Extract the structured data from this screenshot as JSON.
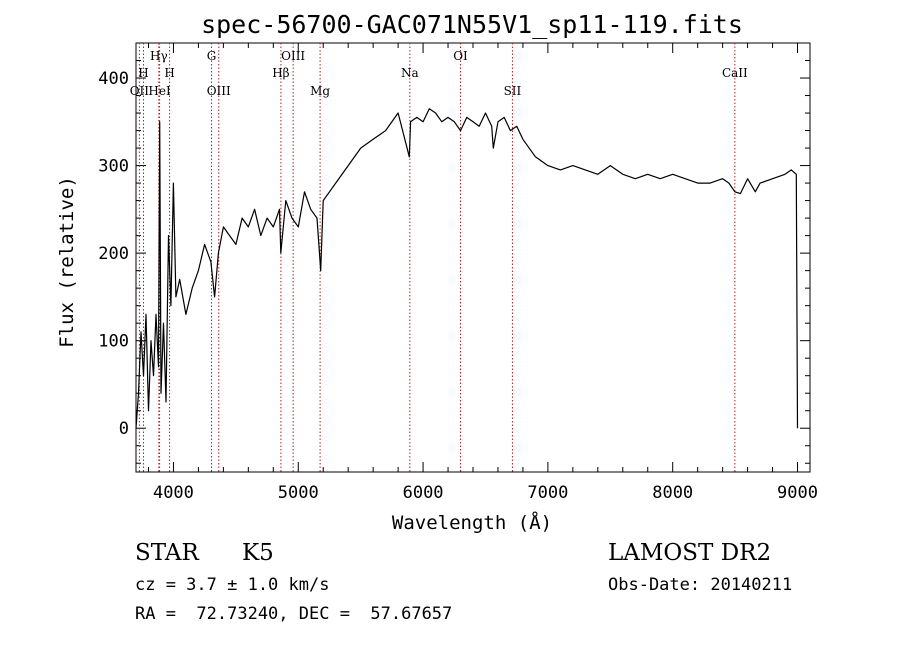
{
  "colors": {
    "background": "#ffffff",
    "foreground": "#000000",
    "line_marker": "#b22222"
  },
  "info": {
    "class": "STAR",
    "subclass": "K5",
    "survey": "LAMOST DR2",
    "redshift": "cz = 3.7 ± 1.0 km/s",
    "obs_date": "Obs-Date: 20140211",
    "coords": "RA =  72.73240, DEC =  57.67657"
  },
  "chart_data": {
    "type": "line",
    "title": "spec-56700-GAC071N55V1_sp11-119.fits",
    "xlabel": "Wavelength (Å)",
    "ylabel": "Flux (relative)",
    "xlim": [
      3700,
      9100
    ],
    "ylim": [
      -50,
      440
    ],
    "x_ticks": [
      4000,
      5000,
      6000,
      7000,
      8000,
      9000
    ],
    "y_ticks": [
      0,
      100,
      200,
      300,
      400
    ],
    "x_tick_labels": [
      "4000",
      "5000",
      "6000",
      "7000",
      "8000",
      "9000"
    ],
    "y_tick_labels": [
      "0",
      "100",
      "200",
      "300",
      "400"
    ],
    "grid": false,
    "series": [
      {
        "x": [
          3700,
          3720,
          3740,
          3760,
          3780,
          3800,
          3820,
          3840,
          3860,
          3880,
          3890,
          3900,
          3920,
          3940,
          3960,
          3980,
          4000,
          4020,
          4050,
          4100,
          4150,
          4200,
          4250,
          4300,
          4330,
          4360,
          4400,
          4450,
          4500,
          4550,
          4600,
          4650,
          4700,
          4750,
          4800,
          4850,
          4860,
          4900,
          4950,
          5000,
          5050,
          5100,
          5150,
          5180,
          5200,
          5250,
          5300,
          5400,
          5500,
          5600,
          5700,
          5800,
          5890,
          5900,
          5950,
          6000,
          6050,
          6100,
          6150,
          6200,
          6250,
          6300,
          6350,
          6400,
          6450,
          6500,
          6550,
          6563,
          6600,
          6650,
          6700,
          6750,
          6800,
          6900,
          7000,
          7100,
          7200,
          7300,
          7400,
          7500,
          7600,
          7700,
          7800,
          7900,
          8000,
          8100,
          8200,
          8300,
          8400,
          8450,
          8498,
          8542,
          8600,
          8662,
          8700,
          8800,
          8900,
          8950,
          8990,
          9000
        ],
        "y": [
          0,
          40,
          110,
          60,
          130,
          20,
          100,
          60,
          130,
          70,
          350,
          40,
          120,
          30,
          220,
          140,
          280,
          150,
          170,
          130,
          160,
          180,
          210,
          190,
          150,
          200,
          230,
          220,
          210,
          240,
          230,
          250,
          220,
          240,
          230,
          250,
          200,
          260,
          240,
          230,
          270,
          250,
          240,
          180,
          260,
          270,
          280,
          300,
          320,
          330,
          340,
          360,
          310,
          350,
          355,
          350,
          365,
          360,
          350,
          355,
          350,
          340,
          355,
          350,
          345,
          360,
          345,
          320,
          350,
          355,
          340,
          345,
          330,
          310,
          300,
          295,
          300,
          295,
          290,
          300,
          290,
          285,
          290,
          285,
          290,
          285,
          280,
          280,
          285,
          280,
          270,
          268,
          285,
          270,
          280,
          285,
          290,
          295,
          290,
          0
        ]
      }
    ],
    "lines": [
      {
        "name": "OII",
        "wave": 3727,
        "row": 2
      },
      {
        "name": "H",
        "wave": 3760,
        "row": 1
      },
      {
        "name": "Hγ",
        "wave": 3883,
        "row": 0
      },
      {
        "name": "HeI",
        "wave": 3889,
        "row": 2
      },
      {
        "name": "H",
        "wave": 3969,
        "row": 1
      },
      {
        "name": "G",
        "wave": 4305,
        "row": 0
      },
      {
        "name": "OIII",
        "wave": 4363,
        "row": 2
      },
      {
        "name": "Hβ",
        "wave": 4861,
        "row": 1
      },
      {
        "name": "OIII",
        "wave": 4959,
        "row": 0
      },
      {
        "name": "Mg",
        "wave": 5175,
        "row": 2
      },
      {
        "name": "Na",
        "wave": 5894,
        "row": 1
      },
      {
        "name": "OI",
        "wave": 6300,
        "row": 0
      },
      {
        "name": "SII",
        "wave": 6716,
        "row": 2
      },
      {
        "name": "CaII",
        "wave": 8498,
        "row": 1
      }
    ]
  }
}
